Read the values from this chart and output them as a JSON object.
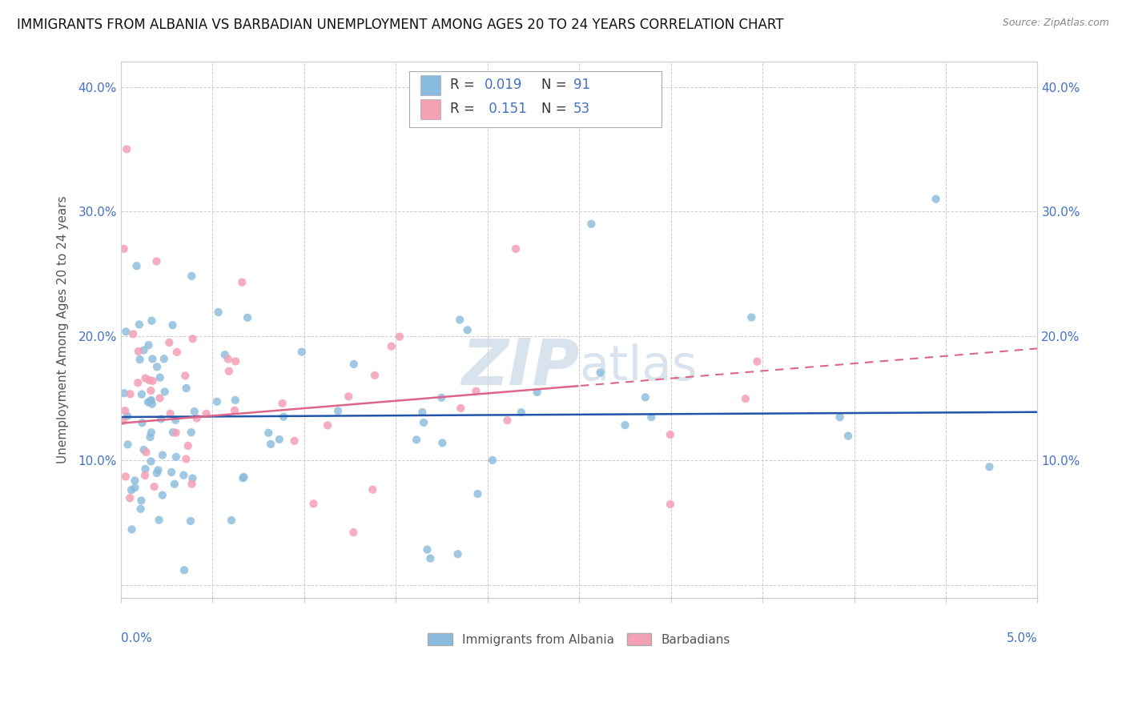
{
  "title": "IMMIGRANTS FROM ALBANIA VS BARBADIAN UNEMPLOYMENT AMONG AGES 20 TO 24 YEARS CORRELATION CHART",
  "source": "Source: ZipAtlas.com",
  "ylabel": "Unemployment Among Ages 20 to 24 years",
  "xlim": [
    0.0,
    5.0
  ],
  "ylim": [
    -1.0,
    42.0
  ],
  "watermark": "ZIPatlas",
  "legend_blue_label": "Immigrants from Albania",
  "legend_pink_label": "Barbadians",
  "R_blue": "0.019",
  "N_blue": "91",
  "R_pink": "0.151",
  "N_pink": "53",
  "blue_color": "#88bbdd",
  "pink_color": "#f4a0b5",
  "blue_line_color": "#2255aa",
  "pink_line_color": "#dd6688",
  "title_fontsize": 12,
  "source_fontsize": 9,
  "tick_fontsize": 11,
  "ylabel_fontsize": 11,
  "axis_color": "#4472c4",
  "grid_color": "#cccccc",
  "watermark_color": "#c8d8e8"
}
